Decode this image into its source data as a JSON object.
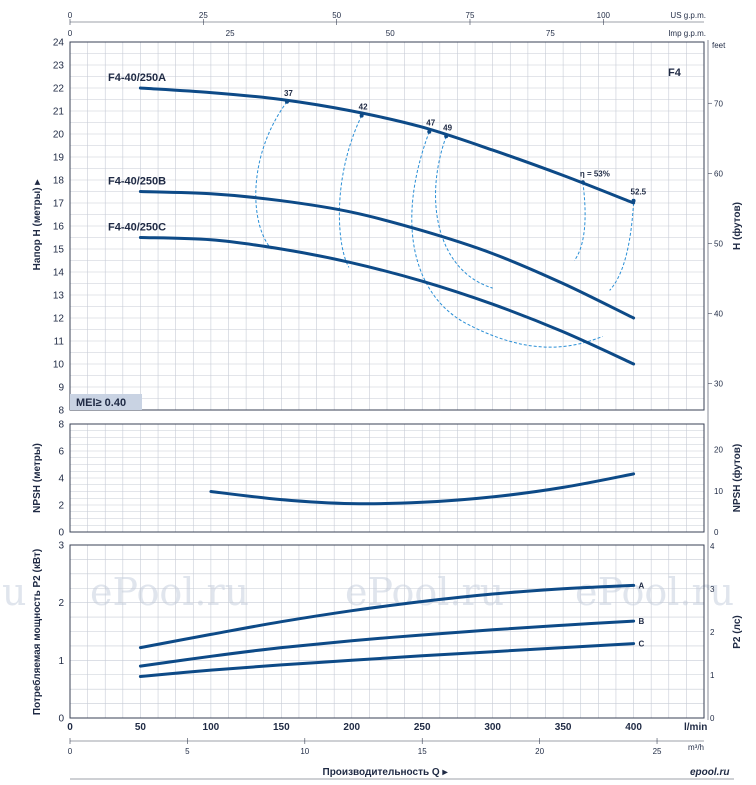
{
  "model_badge": "F4",
  "mei_label": "MEI≥ 0.40",
  "watermark": "ePool.ru",
  "corner_logo": "epool.ru",
  "colors": {
    "curve": "#0d4a87",
    "efficiency": "#2a8fd6",
    "badge": "#1f5ea8",
    "mei_bg": "#c9d3e3",
    "frame": "#3a4256"
  },
  "axes": {
    "top_usgpm_label": "US g.p.m.",
    "top_usgpm_ticks": [
      "0",
      "25",
      "50",
      "75",
      "100"
    ],
    "top_impgpm_label": "Imp g.p.m.",
    "top_impgpm_ticks": [
      "0",
      "25",
      "50",
      "75"
    ],
    "x_lmin_label": "l/min",
    "x_lmin_ticks": [
      "0",
      "50",
      "100",
      "150",
      "200",
      "250",
      "300",
      "350",
      "400"
    ],
    "x_m3h_label": "m³/h",
    "x_m3h_ticks": [
      "0",
      "5",
      "10",
      "15",
      "20",
      "25"
    ],
    "x_title": "Производительность Q",
    "head_left_title": "Напор H (метры)",
    "head_left_ticks": [
      "8",
      "9",
      "10",
      "11",
      "12",
      "13",
      "14",
      "15",
      "16",
      "17",
      "18",
      "19",
      "20",
      "21",
      "22",
      "23",
      "24"
    ],
    "head_right_title": "H (футов)",
    "head_right_unit": "feet",
    "head_right_ticks": [
      "30",
      "40",
      "50",
      "60",
      "70"
    ],
    "npsh_left_title": "NPSH (метры)",
    "npsh_left_ticks": [
      "0",
      "2",
      "4",
      "6",
      "8"
    ],
    "npsh_right_title": "NPSH (футов)",
    "npsh_right_ticks": [
      "0",
      "10",
      "20"
    ],
    "power_left_title": "Потребляемая мощность P2 (кВт)",
    "power_left_ticks": [
      "0",
      "1",
      "2",
      "3"
    ],
    "power_right_title": "P2 (лс)",
    "power_right_ticks": [
      "0",
      "1",
      "2",
      "3",
      "4"
    ]
  },
  "chart_data": [
    {
      "type": "line",
      "title": "",
      "xlabel": "Производительность Q (l/min)",
      "ylabel": "Напор H (метры)",
      "xlim": [
        0,
        450
      ],
      "ylim": [
        8,
        24
      ],
      "grid": true,
      "series": [
        {
          "name": "F4-40/250A",
          "x": [
            50,
            100,
            150,
            200,
            250,
            300,
            350,
            400
          ],
          "y": [
            22.0,
            21.8,
            21.5,
            21.0,
            20.3,
            19.3,
            18.2,
            17.0
          ]
        },
        {
          "name": "F4-40/250B",
          "x": [
            50,
            100,
            150,
            200,
            250,
            300,
            350,
            400
          ],
          "y": [
            17.5,
            17.4,
            17.1,
            16.6,
            15.8,
            14.8,
            13.5,
            12.0
          ]
        },
        {
          "name": "F4-40/250C",
          "x": [
            50,
            100,
            150,
            200,
            250,
            300,
            350,
            400
          ],
          "y": [
            15.5,
            15.4,
            15.0,
            14.4,
            13.6,
            12.6,
            11.4,
            10.0
          ]
        }
      ],
      "efficiency_labels": [
        {
          "label": "37",
          "x": 154,
          "y": 21.4
        },
        {
          "label": "42",
          "x": 207,
          "y": 20.8
        },
        {
          "label": "47",
          "x": 255,
          "y": 20.1
        },
        {
          "label": "49",
          "x": 267,
          "y": 19.9
        },
        {
          "label": "η = 53%",
          "x": 364,
          "y": 17.9
        },
        {
          "label": "52.5",
          "x": 400,
          "y": 17.1
        }
      ]
    },
    {
      "type": "line",
      "title": "",
      "xlabel": "Производительность Q (l/min)",
      "ylabel": "NPSH (метры)",
      "xlim": [
        0,
        450
      ],
      "ylim": [
        0,
        8
      ],
      "grid": true,
      "series": [
        {
          "x": [
            100,
            150,
            200,
            250,
            300,
            350,
            400
          ],
          "y": [
            3.0,
            2.4,
            2.1,
            2.2,
            2.6,
            3.3,
            4.3
          ]
        }
      ]
    },
    {
      "type": "line",
      "title": "",
      "xlabel": "Производительность Q (l/min)",
      "ylabel": "Потребляемая мощность P2 (кВт)",
      "xlim": [
        0,
        450
      ],
      "ylim": [
        0,
        3
      ],
      "grid": true,
      "series": [
        {
          "name": "A",
          "x": [
            50,
            100,
            150,
            200,
            250,
            300,
            350,
            400
          ],
          "y": [
            1.22,
            1.45,
            1.67,
            1.86,
            2.02,
            2.15,
            2.24,
            2.3
          ]
        },
        {
          "name": "B",
          "x": [
            50,
            100,
            150,
            200,
            250,
            300,
            350,
            400
          ],
          "y": [
            0.9,
            1.07,
            1.22,
            1.34,
            1.44,
            1.53,
            1.61,
            1.68
          ]
        },
        {
          "name": "C",
          "x": [
            50,
            100,
            150,
            200,
            250,
            300,
            350,
            400
          ],
          "y": [
            0.72,
            0.83,
            0.92,
            1.0,
            1.08,
            1.15,
            1.22,
            1.29
          ]
        }
      ]
    }
  ]
}
